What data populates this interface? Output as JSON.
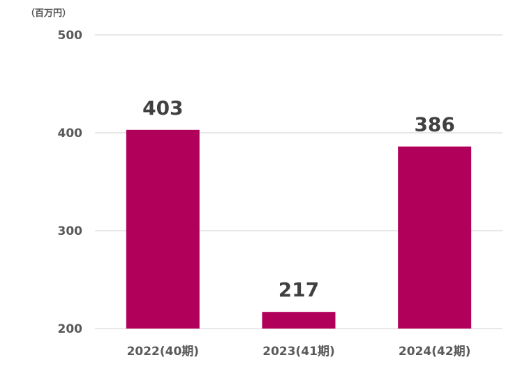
{
  "chart_data": {
    "type": "bar",
    "unit_label": "（百万円）",
    "categories": [
      "2022(40期)",
      "2023(41期)",
      "2024(42期)"
    ],
    "values": [
      403,
      217,
      386
    ],
    "ylim": [
      200,
      500
    ],
    "yticks": [
      200,
      300,
      400,
      500
    ],
    "grid": true,
    "bar_color": "#B0005A",
    "grid_color": "#D9D9D9",
    "tick_color": "#595959",
    "label_color": "#404040"
  }
}
